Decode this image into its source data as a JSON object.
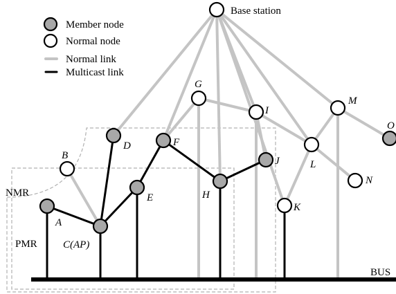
{
  "legend": {
    "member_node": "Member node",
    "normal_node": "Normal node",
    "normal_link": "Normal link",
    "multicast_link": "Multicast link"
  },
  "regions": {
    "nmr": "NMR",
    "pmr": "PMR"
  },
  "bus": {
    "label": "BUS"
  },
  "nodes": {
    "base": {
      "label": "Base station",
      "type": "normal"
    },
    "A": {
      "label": "A",
      "type": "member"
    },
    "B": {
      "label": "B",
      "type": "normal"
    },
    "C": {
      "label": "C(AP)",
      "type": "member"
    },
    "D": {
      "label": "D",
      "type": "member"
    },
    "E": {
      "label": "E",
      "type": "member"
    },
    "F": {
      "label": "F",
      "type": "member"
    },
    "G": {
      "label": "G",
      "type": "normal"
    },
    "H": {
      "label": "H",
      "type": "member"
    },
    "I": {
      "label": "I",
      "type": "normal"
    },
    "J": {
      "label": "J",
      "type": "member"
    },
    "K": {
      "label": "K",
      "type": "normal"
    },
    "L": {
      "label": "L",
      "type": "normal"
    },
    "M": {
      "label": "M",
      "type": "normal"
    },
    "N": {
      "label": "N",
      "type": "normal"
    },
    "O": {
      "label": "O",
      "type": "member"
    }
  },
  "links": {
    "normal": [
      [
        "base",
        "D"
      ],
      [
        "base",
        "F"
      ],
      [
        "base",
        "H"
      ],
      [
        "base",
        "I"
      ],
      [
        "base",
        "L"
      ],
      [
        "base",
        "K"
      ],
      [
        "base",
        "M"
      ],
      [
        "G",
        "F"
      ],
      [
        "G",
        "I"
      ],
      [
        "I",
        "J"
      ],
      [
        "I",
        "L"
      ],
      [
        "M",
        "L"
      ],
      [
        "M",
        "O"
      ],
      [
        "L",
        "N"
      ],
      [
        "L",
        "K"
      ],
      [
        "B",
        "C"
      ]
    ],
    "multicast": [
      [
        "A",
        "C"
      ],
      [
        "C",
        "D"
      ],
      [
        "C",
        "E"
      ],
      [
        "E",
        "F"
      ],
      [
        "F",
        "H"
      ],
      [
        "H",
        "J"
      ]
    ]
  },
  "drops": {
    "multicast": [
      "A",
      "C",
      "E",
      "H",
      "K"
    ],
    "normal": [
      "G",
      "I",
      "M"
    ]
  }
}
